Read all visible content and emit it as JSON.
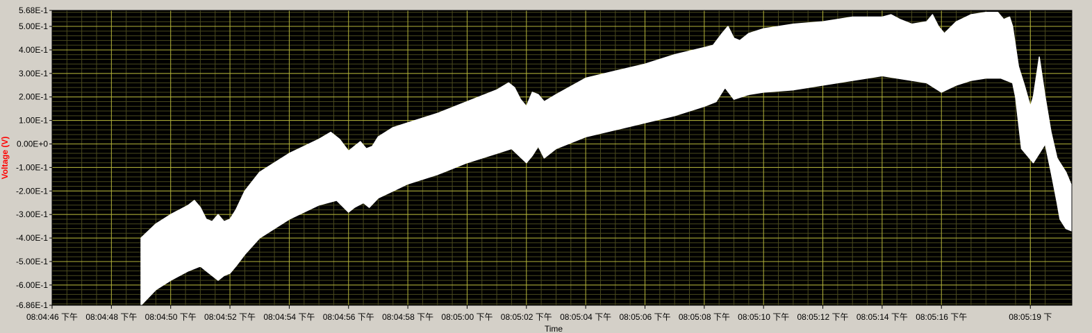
{
  "chart_data": {
    "type": "area",
    "xlabel": "Time",
    "ylabel": "Voltage (V)",
    "ylim": [
      -0.686,
      0.568
    ],
    "y_ticks": [
      {
        "value": 0.568,
        "label": "5.68E-1"
      },
      {
        "value": 0.5,
        "label": "5.00E-1"
      },
      {
        "value": 0.4,
        "label": "4.00E-1"
      },
      {
        "value": 0.3,
        "label": "3.00E-1"
      },
      {
        "value": 0.2,
        "label": "2.00E-1"
      },
      {
        "value": 0.1,
        "label": "1.00E-1"
      },
      {
        "value": 0.0,
        "label": "0.00E+0"
      },
      {
        "value": -0.1,
        "label": "-1.00E-1"
      },
      {
        "value": -0.2,
        "label": "-2.00E-1"
      },
      {
        "value": -0.3,
        "label": "-3.00E-1"
      },
      {
        "value": -0.4,
        "label": "-4.00E-1"
      },
      {
        "value": -0.5,
        "label": "-5.00E-1"
      },
      {
        "value": -0.6,
        "label": "-6.00E-1"
      },
      {
        "value": -0.686,
        "label": "-6.86E-1"
      }
    ],
    "x_ticks": [
      {
        "value": 0,
        "label": "08:04:46 下午"
      },
      {
        "value": 2,
        "label": "08:04:48 下午"
      },
      {
        "value": 4,
        "label": "08:04:50 下午"
      },
      {
        "value": 6,
        "label": "08:04:52 下午"
      },
      {
        "value": 8,
        "label": "08:04:54 下午"
      },
      {
        "value": 10,
        "label": "08:04:56 下午"
      },
      {
        "value": 12,
        "label": "08:04:58 下午"
      },
      {
        "value": 14,
        "label": "08:05:00 下午"
      },
      {
        "value": 16,
        "label": "08:05:02 下午"
      },
      {
        "value": 18,
        "label": "08:05:04 下午"
      },
      {
        "value": 20,
        "label": "08:05:06 下午"
      },
      {
        "value": 22,
        "label": "08:05:08 下午"
      },
      {
        "value": 24,
        "label": "08:05:10 下午"
      },
      {
        "value": 26,
        "label": "08:05:12 下午"
      },
      {
        "value": 28,
        "label": "08:05:14 下午"
      },
      {
        "value": 30,
        "label": "08:05:16 下午"
      },
      {
        "value": 33,
        "label": "08:05:19 下"
      }
    ],
    "series": [
      {
        "upper": [
          [
            3.0,
            -0.4
          ],
          [
            3.5,
            -0.34
          ],
          [
            4.0,
            -0.3
          ],
          [
            4.6,
            -0.26
          ],
          [
            4.8,
            -0.24
          ],
          [
            5.0,
            -0.27
          ],
          [
            5.2,
            -0.32
          ],
          [
            5.4,
            -0.33
          ],
          [
            5.6,
            -0.3
          ],
          [
            5.8,
            -0.33
          ],
          [
            6.0,
            -0.32
          ],
          [
            6.2,
            -0.28
          ],
          [
            6.5,
            -0.2
          ],
          [
            7.0,
            -0.12
          ],
          [
            8.0,
            -0.04
          ],
          [
            9.0,
            0.02
          ],
          [
            9.4,
            0.05
          ],
          [
            9.7,
            0.02
          ],
          [
            10.0,
            -0.03
          ],
          [
            10.2,
            -0.01
          ],
          [
            10.4,
            0.01
          ],
          [
            10.6,
            -0.02
          ],
          [
            10.8,
            -0.01
          ],
          [
            11.0,
            0.03
          ],
          [
            11.5,
            0.07
          ],
          [
            12.0,
            0.09
          ],
          [
            13.0,
            0.13
          ],
          [
            14.0,
            0.18
          ],
          [
            15.0,
            0.23
          ],
          [
            15.4,
            0.26
          ],
          [
            15.6,
            0.24
          ],
          [
            15.8,
            0.19
          ],
          [
            16.0,
            0.16
          ],
          [
            16.2,
            0.22
          ],
          [
            16.4,
            0.21
          ],
          [
            16.6,
            0.18
          ],
          [
            17.0,
            0.21
          ],
          [
            18.0,
            0.28
          ],
          [
            19.0,
            0.31
          ],
          [
            20.0,
            0.34
          ],
          [
            21.0,
            0.38
          ],
          [
            22.0,
            0.41
          ],
          [
            22.3,
            0.42
          ],
          [
            22.6,
            0.47
          ],
          [
            22.8,
            0.5
          ],
          [
            23.0,
            0.45
          ],
          [
            23.2,
            0.44
          ],
          [
            23.5,
            0.47
          ],
          [
            24.0,
            0.49
          ],
          [
            25.0,
            0.51
          ],
          [
            26.0,
            0.52
          ],
          [
            27.0,
            0.54
          ],
          [
            27.5,
            0.54
          ],
          [
            28.0,
            0.54
          ],
          [
            28.3,
            0.55
          ],
          [
            28.6,
            0.53
          ],
          [
            29.0,
            0.51
          ],
          [
            29.5,
            0.52
          ],
          [
            29.7,
            0.55
          ],
          [
            29.9,
            0.5
          ],
          [
            30.1,
            0.47
          ],
          [
            30.5,
            0.52
          ],
          [
            31.0,
            0.55
          ],
          [
            31.5,
            0.56
          ],
          [
            31.9,
            0.56
          ],
          [
            32.1,
            0.53
          ],
          [
            32.3,
            0.54
          ],
          [
            32.4,
            0.5
          ],
          [
            32.6,
            0.33
          ],
          [
            32.8,
            0.25
          ],
          [
            33.0,
            0.16
          ],
          [
            33.1,
            0.2
          ],
          [
            33.3,
            0.37
          ],
          [
            33.5,
            0.2
          ],
          [
            33.7,
            0.05
          ],
          [
            33.9,
            -0.06
          ],
          [
            34.0,
            -0.08
          ],
          [
            34.2,
            -0.12
          ],
          [
            34.4,
            -0.18
          ]
        ],
        "lower": [
          [
            3.0,
            -0.686
          ],
          [
            3.5,
            -0.62
          ],
          [
            4.0,
            -0.58
          ],
          [
            4.6,
            -0.54
          ],
          [
            5.0,
            -0.52
          ],
          [
            5.2,
            -0.54
          ],
          [
            5.6,
            -0.58
          ],
          [
            5.8,
            -0.56
          ],
          [
            6.0,
            -0.55
          ],
          [
            6.2,
            -0.52
          ],
          [
            6.5,
            -0.47
          ],
          [
            7.0,
            -0.4
          ],
          [
            8.0,
            -0.32
          ],
          [
            9.0,
            -0.26
          ],
          [
            9.6,
            -0.24
          ],
          [
            10.0,
            -0.29
          ],
          [
            10.2,
            -0.27
          ],
          [
            10.5,
            -0.25
          ],
          [
            10.7,
            -0.27
          ],
          [
            11.0,
            -0.23
          ],
          [
            11.5,
            -0.2
          ],
          [
            12.0,
            -0.17
          ],
          [
            13.0,
            -0.13
          ],
          [
            14.0,
            -0.08
          ],
          [
            15.0,
            -0.04
          ],
          [
            15.5,
            -0.02
          ],
          [
            16.0,
            -0.08
          ],
          [
            16.2,
            -0.05
          ],
          [
            16.4,
            -0.01
          ],
          [
            16.6,
            -0.06
          ],
          [
            17.0,
            -0.02
          ],
          [
            18.0,
            0.03
          ],
          [
            19.0,
            0.06
          ],
          [
            20.0,
            0.09
          ],
          [
            21.0,
            0.12
          ],
          [
            22.0,
            0.16
          ],
          [
            22.4,
            0.18
          ],
          [
            22.7,
            0.24
          ],
          [
            23.0,
            0.19
          ],
          [
            23.5,
            0.21
          ],
          [
            24.0,
            0.22
          ],
          [
            25.0,
            0.23
          ],
          [
            26.0,
            0.25
          ],
          [
            27.0,
            0.27
          ],
          [
            28.0,
            0.29
          ],
          [
            28.5,
            0.28
          ],
          [
            29.0,
            0.27
          ],
          [
            29.5,
            0.26
          ],
          [
            30.0,
            0.22
          ],
          [
            30.5,
            0.25
          ],
          [
            31.0,
            0.27
          ],
          [
            31.5,
            0.28
          ],
          [
            32.0,
            0.28
          ],
          [
            32.2,
            0.27
          ],
          [
            32.4,
            0.26
          ],
          [
            32.5,
            0.2
          ],
          [
            32.7,
            -0.02
          ],
          [
            32.9,
            -0.05
          ],
          [
            33.1,
            -0.08
          ],
          [
            33.3,
            -0.04
          ],
          [
            33.5,
            0.0
          ],
          [
            33.7,
            -0.12
          ],
          [
            33.9,
            -0.25
          ],
          [
            34.0,
            -0.32
          ],
          [
            34.2,
            -0.36
          ],
          [
            34.4,
            -0.37
          ]
        ]
      }
    ]
  },
  "colors": {
    "plot_bg": "#000000",
    "major_grid": "#b5b53a",
    "minor_grid": "#4a4a1e",
    "trace": "#ffffff",
    "ylabel_color": "#ff0000",
    "frame_bg": "#d4d0c8"
  }
}
